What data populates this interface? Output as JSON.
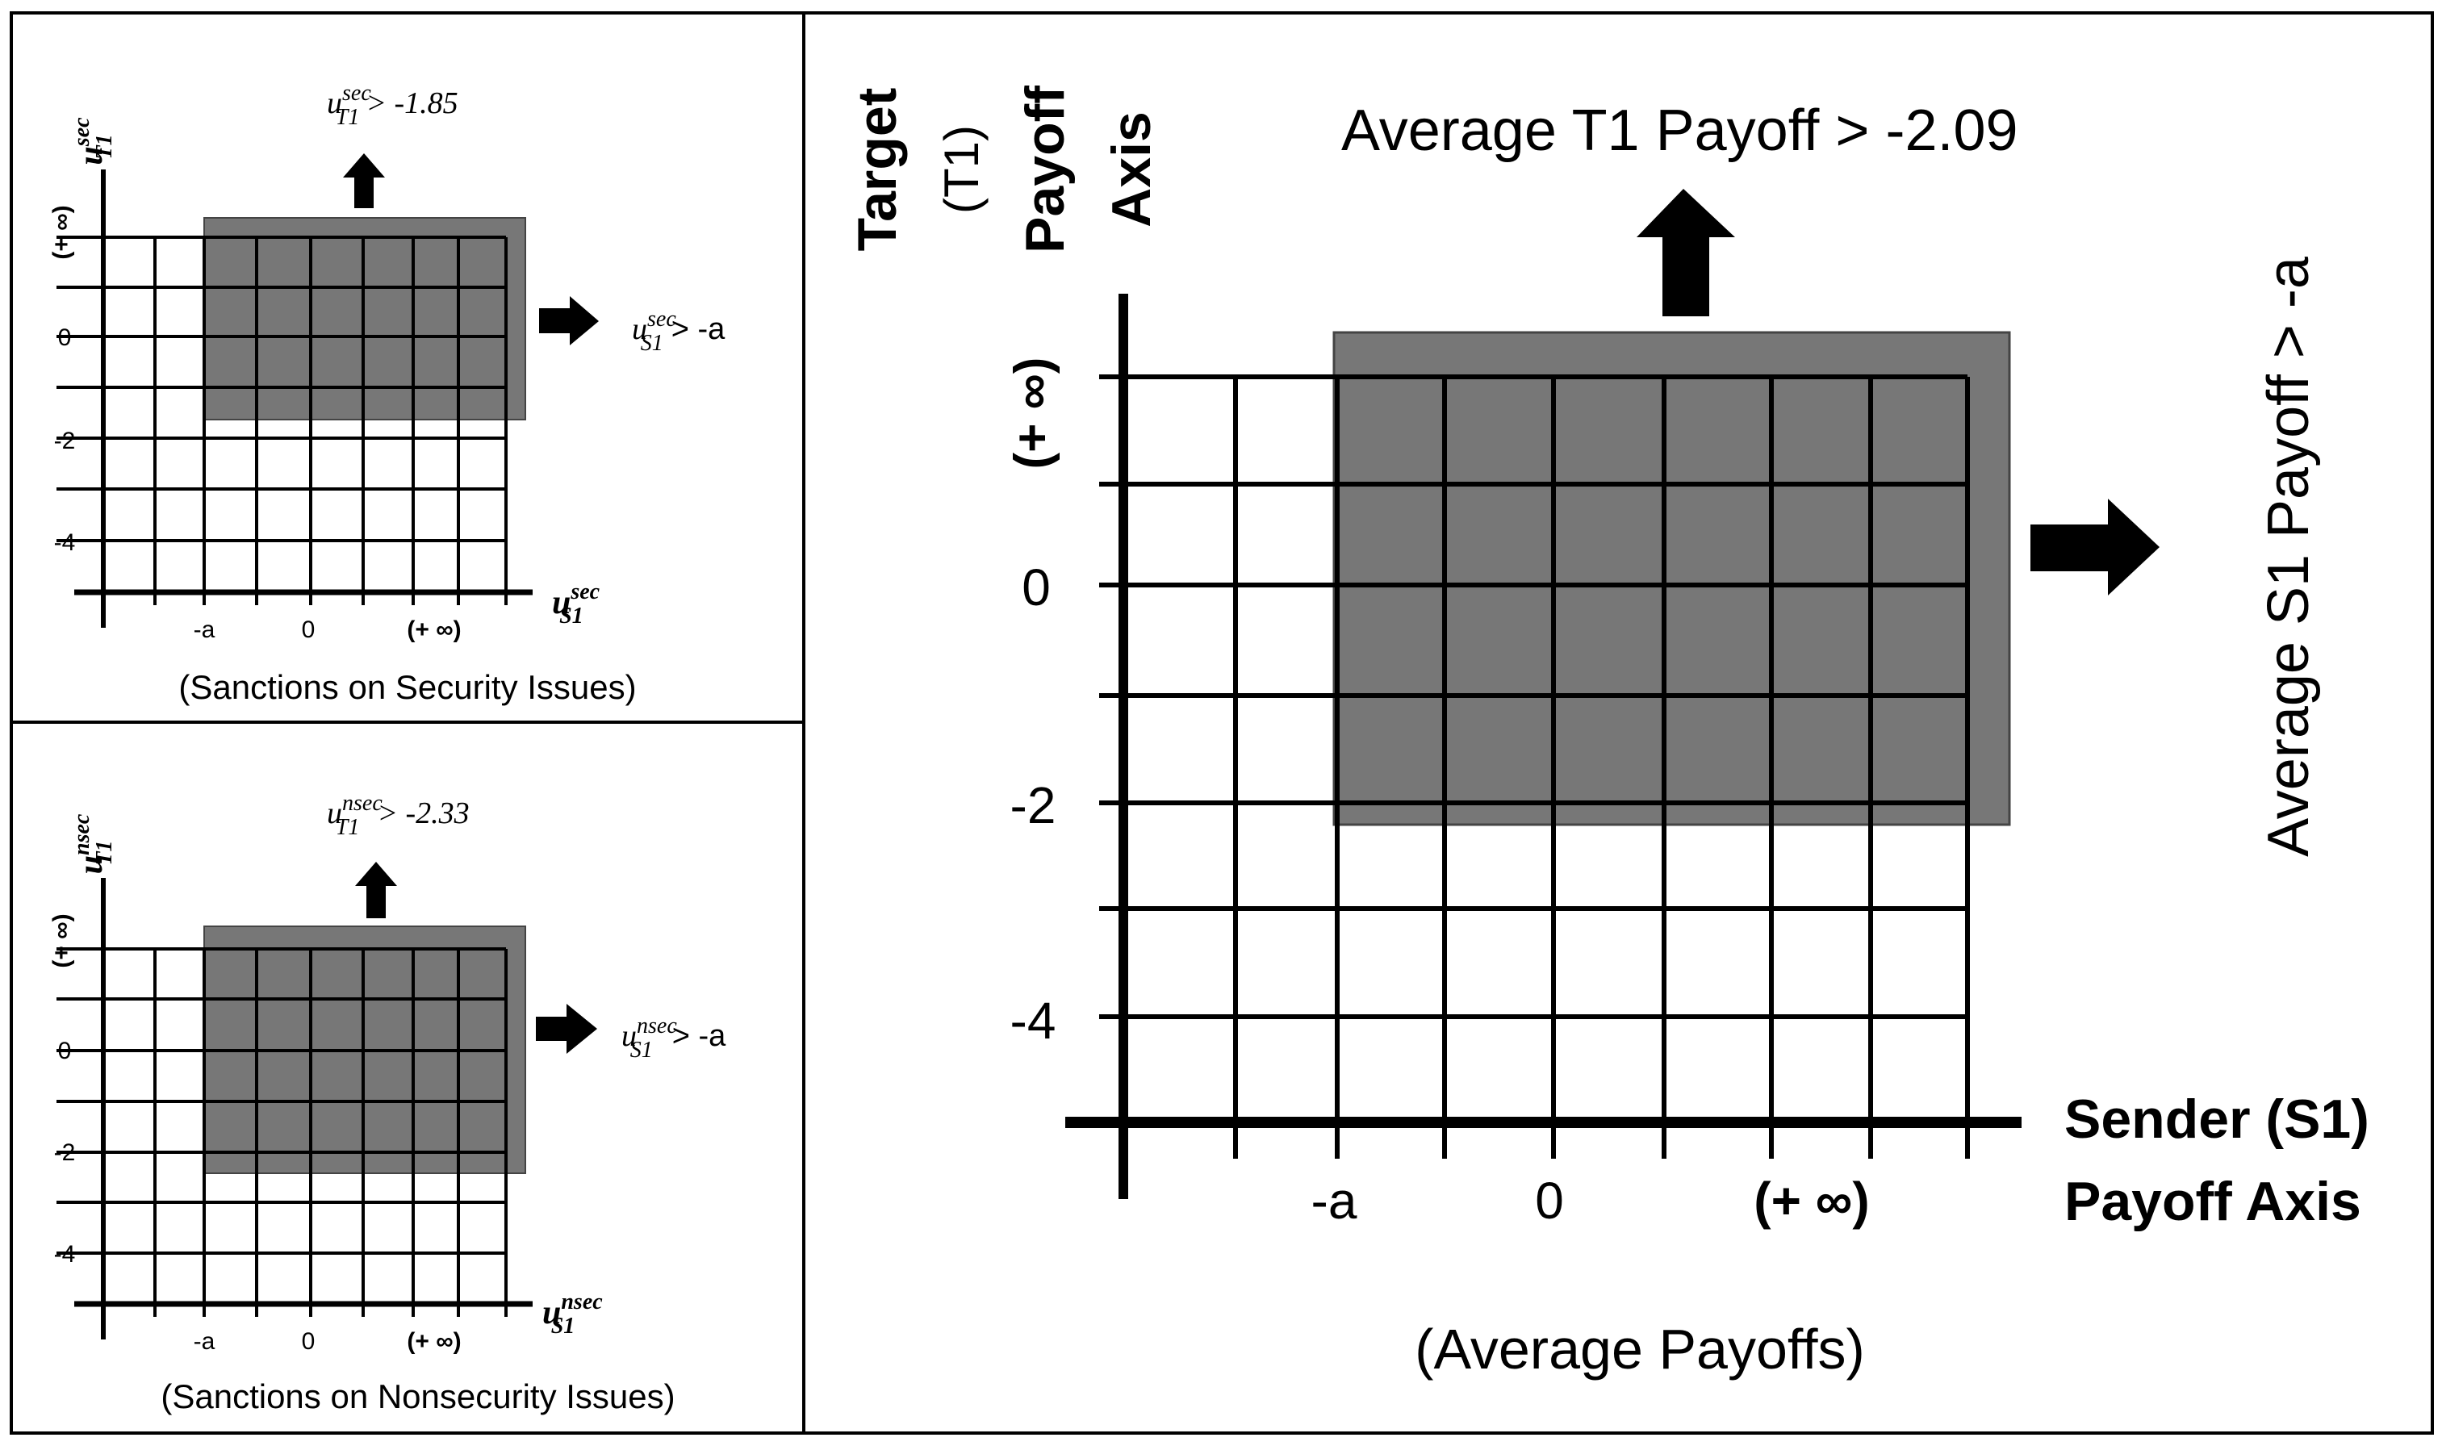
{
  "panels": [
    {
      "id": "security",
      "caption": "(Sanctions on Security Issues)",
      "x_ticks": [
        "-a",
        "0",
        "(+ ∞)"
      ],
      "y_ticks": [
        "0",
        "-2",
        "-4"
      ],
      "y_infinity_label": "(+ ∞)",
      "x_axis_var": {
        "base": "u",
        "sup": "sec",
        "sub": "S1"
      },
      "y_axis_var": {
        "base": "u",
        "sup": "sec",
        "sub": "T1"
      },
      "t_threshold": {
        "base": "u",
        "sup": "sec",
        "sub": "T1",
        "tail": "> -1.85"
      },
      "s_threshold": {
        "base": "u",
        "sup": "sec",
        "sub": "S1",
        "tail": "> -a"
      }
    },
    {
      "id": "nonsecurity",
      "caption": "(Sanctions on Nonsecurity Issues)",
      "x_ticks": [
        "-a",
        "0",
        "(+ ∞)"
      ],
      "y_ticks": [
        "0",
        "-2",
        "-4"
      ],
      "y_infinity_label": "(+ ∞)",
      "x_axis_var": {
        "base": "u",
        "sup": "nsec",
        "sub": "S1"
      },
      "y_axis_var": {
        "base": "u",
        "sup": "nsec",
        "sub": "T1"
      },
      "t_threshold": {
        "base": "u",
        "sup": "nsec",
        "sub": "T1",
        "tail": "> -2.33"
      },
      "s_threshold": {
        "base": "u",
        "sup": "nsec",
        "sub": "S1",
        "tail": "> -a"
      }
    }
  ],
  "main": {
    "caption": "(Average Payoffs)",
    "x_ticks": [
      "-a",
      "0",
      "(+ ∞)"
    ],
    "y_ticks": [
      "0",
      "-2",
      "-4"
    ],
    "y_infinity_label": "(+ ∞)",
    "y_axis_title": [
      "Target",
      "(T1)",
      "Payoff",
      "Axis"
    ],
    "x_axis_title": [
      "Sender (S1)",
      "Payoff Axis"
    ],
    "t_threshold": "Average T1 Payoff > -2.09",
    "s_threshold": "Average S1 Payoff > -a"
  },
  "colors": {
    "shade": "#777777",
    "line": "#000000",
    "border": "#000000"
  }
}
